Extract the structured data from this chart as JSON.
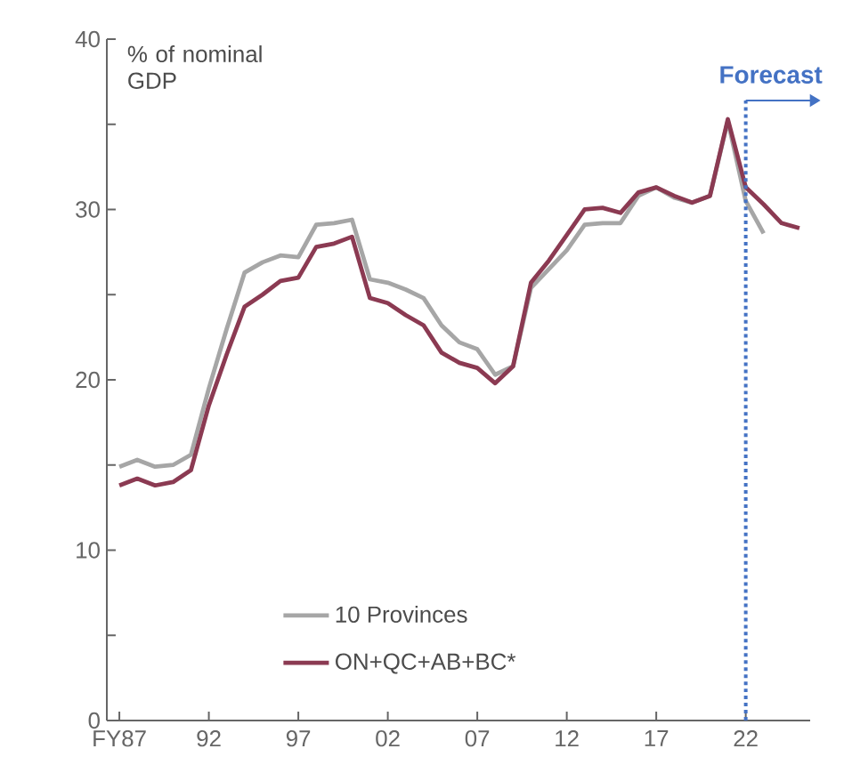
{
  "chart_data": {
    "type": "line",
    "ylabel": "% of nominal GDP",
    "x": [
      1987,
      1988,
      1989,
      1990,
      1991,
      1992,
      1993,
      1994,
      1995,
      1996,
      1997,
      1998,
      1999,
      2000,
      2001,
      2002,
      2003,
      2004,
      2005,
      2006,
      2007,
      2008,
      2009,
      2010,
      2011,
      2012,
      2013,
      2014,
      2015,
      2016,
      2017,
      2018,
      2019,
      2020,
      2021,
      2022,
      2023,
      2024,
      2025
    ],
    "series": [
      {
        "name": "10 Provinces",
        "color": "#a6a6a6",
        "values": [
          14.9,
          15.3,
          14.9,
          15.0,
          15.6,
          19.5,
          23.0,
          26.3,
          26.9,
          27.3,
          27.2,
          29.1,
          29.2,
          29.4,
          25.9,
          25.7,
          25.3,
          24.8,
          23.2,
          22.2,
          21.8,
          20.3,
          20.8,
          25.4,
          26.5,
          27.6,
          29.1,
          29.2,
          29.2,
          30.8,
          31.3,
          30.7,
          30.4,
          30.8,
          35.2,
          30.5,
          28.6,
          null,
          null
        ]
      },
      {
        "name": "ON+QC+AB+BC*",
        "color": "#8b3a52",
        "values": [
          13.8,
          14.2,
          13.8,
          14.0,
          14.7,
          18.5,
          21.5,
          24.3,
          25.0,
          25.8,
          26.0,
          27.8,
          28.0,
          28.4,
          24.8,
          24.5,
          23.8,
          23.2,
          21.6,
          21.0,
          20.7,
          19.8,
          20.8,
          25.7,
          27.0,
          28.5,
          30.0,
          30.1,
          29.8,
          31.0,
          31.3,
          30.8,
          30.4,
          30.8,
          35.3,
          31.3,
          30.3,
          29.2,
          28.9
        ]
      }
    ],
    "xlim": [
      1986.3,
      2025.6
    ],
    "xticks": [
      {
        "value": 1987,
        "label": "FY87"
      },
      {
        "value": 1992,
        "label": "92"
      },
      {
        "value": 1997,
        "label": "97"
      },
      {
        "value": 2002,
        "label": "02"
      },
      {
        "value": 2007,
        "label": "07"
      },
      {
        "value": 2012,
        "label": "12"
      },
      {
        "value": 2017,
        "label": "17"
      },
      {
        "value": 2022,
        "label": "22"
      }
    ],
    "ylim": [
      0,
      40
    ],
    "yticks": [
      0,
      10,
      20,
      30,
      40
    ],
    "ref_lines": [
      {
        "axis": "x",
        "value": 2022,
        "label": "Forecast",
        "color": "#4472c4",
        "line_style": "dotted"
      }
    ],
    "legend": "bottom",
    "grid": false,
    "marker": "none",
    "line_style": "solid"
  }
}
